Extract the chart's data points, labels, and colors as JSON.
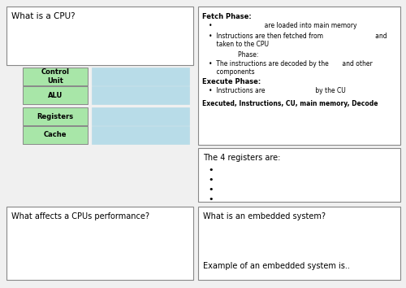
{
  "bg_color": "#f0f0f0",
  "box_bg": "#ffffff",
  "border_color": "#888888",
  "green_box_color": "#a8e6a8",
  "blue_box_color": "#b8dce8",
  "cpu_question": "What is a CPU?",
  "fetch_title": "Fetch Phase:",
  "fetch_b1": "                         are loaded into main memory",
  "fetch_b2": "Instructions are then fetched from                           and",
  "fetch_b2b": "    taken to the CPU",
  "decode_phase": "        Phase:",
  "decode_b": "The instructions are decoded by the       and other",
  "decode_b2": "    components",
  "execute_title": "Execute Phase:",
  "execute_b": "Instructions are                          by the CU",
  "word_bank": "Executed, Instructions, CU, main memory, Decode",
  "green_labels": [
    "Control\nUnit",
    "ALU",
    "Registers",
    "Cache"
  ],
  "registers_title": "The 4 registers are:",
  "performance_question": "What affects a CPUs performance?",
  "embedded_title": "What is an embedded system?",
  "embedded_example": "Example of an embedded system is.."
}
